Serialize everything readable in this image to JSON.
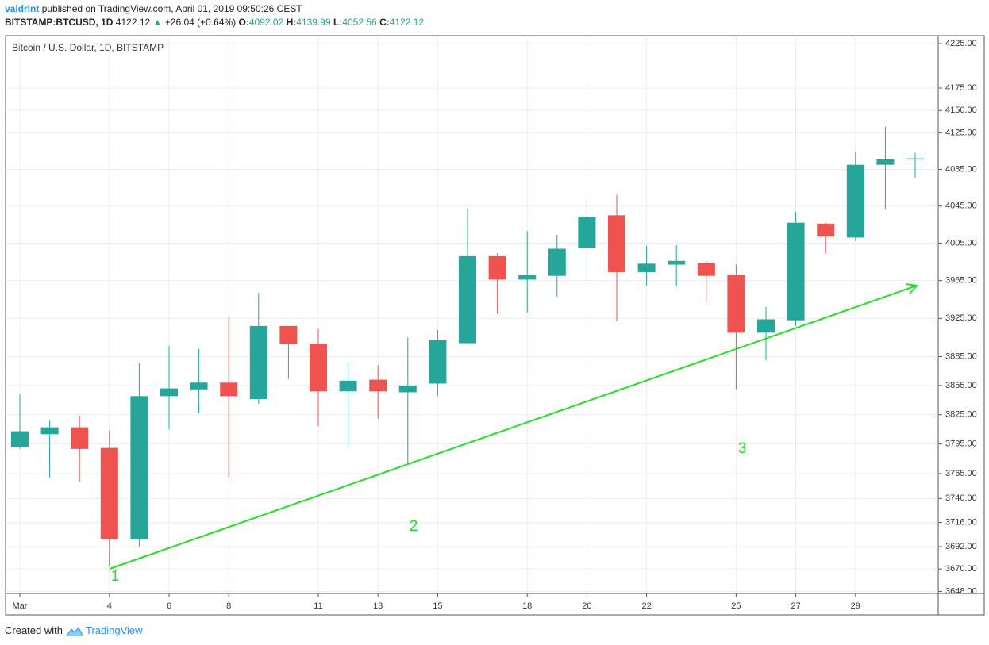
{
  "header": {
    "user": "valdrint",
    "published": "published on TradingView.com, April 01, 2019 09:50:26 CEST",
    "symbol": "BITSTAMP:BTCUSD, 1D",
    "last": "4122.12",
    "arrow": "▲",
    "change": "+26.04 (+0.64%)",
    "o_label": "O:",
    "o": "4092.02",
    "h_label": "H:",
    "h": "4139.99",
    "l_label": "L:",
    "l": "4052.56",
    "c_label": "C:",
    "c": "4122.12"
  },
  "chart_data": {
    "type": "candlestick",
    "title": "Bitcoin / U.S. Dollar, 1D, BITSTAMP",
    "categories": [
      "Mar",
      null,
      null,
      "4",
      null,
      "6",
      null,
      "8",
      null,
      null,
      "11",
      null,
      "13",
      null,
      "15",
      null,
      null,
      "18",
      null,
      "20",
      null,
      "22",
      null,
      null,
      "25",
      null,
      "27",
      null,
      "29",
      null,
      null
    ],
    "open": [
      3792,
      3805,
      3812,
      3791,
      3699,
      3844,
      3851,
      3858,
      3841,
      3917,
      3898,
      3849,
      3861,
      3848,
      3857,
      3899,
      3991,
      3966,
      3970,
      4000,
      4035,
      3974,
      3982,
      3984,
      3971,
      3910,
      3923,
      4026,
      4011,
      4090,
      4096
    ],
    "high": [
      3846,
      3819,
      3824,
      3809,
      3878,
      3896,
      3893,
      3927,
      3952,
      3917,
      3914,
      3878,
      3876,
      3905,
      3913,
      4042,
      3994,
      4018,
      4014,
      4051,
      4057,
      4002,
      4003,
      3986,
      3982,
      3937,
      4039,
      4027,
      4104,
      4132,
      4103
    ],
    "low": [
      3790,
      3761,
      3757,
      3672,
      3692,
      3810,
      3827,
      3761,
      3836,
      3862,
      3813,
      3793,
      3821,
      3776,
      3844,
      3899,
      3930,
      3931,
      3948,
      3963,
      3922,
      3960,
      3959,
      3942,
      3851,
      3881,
      3917,
      3994,
      4007,
      4041,
      4076
    ],
    "close": [
      3808,
      3812,
      3790,
      3699,
      3844,
      3852,
      3858,
      3844,
      3917,
      3898,
      3849,
      3860,
      3849,
      3855,
      3902,
      3991,
      3966,
      3971,
      3999,
      4033,
      3974,
      3983,
      3986,
      3970,
      3910,
      3924,
      4027,
      4012,
      4090,
      4096,
      4097
    ],
    "up_color": "#26a69a",
    "down_color": "#ef5350",
    "log_scale": true,
    "grid": true,
    "ylim": [
      3646,
      4234
    ],
    "yticks": [
      {
        "value": 3648,
        "label": "3648.00"
      },
      {
        "value": 3670,
        "label": "3670.00"
      },
      {
        "value": 3692,
        "label": "3692.00"
      },
      {
        "value": 3716,
        "label": "3716.00"
      },
      {
        "value": 3740,
        "label": "3740.00"
      },
      {
        "value": 3765,
        "label": "3765.00"
      },
      {
        "value": 3795,
        "label": "3795.00"
      },
      {
        "value": 3825,
        "label": "3825.00"
      },
      {
        "value": 3855,
        "label": "3855.00"
      },
      {
        "value": 3885,
        "label": "3885.00"
      },
      {
        "value": 3925,
        "label": "3925.00"
      },
      {
        "value": 3965,
        "label": "3965.00"
      },
      {
        "value": 4005,
        "label": "4005.00"
      },
      {
        "value": 4045,
        "label": "4045.00"
      },
      {
        "value": 4085,
        "label": "4085.00"
      },
      {
        "value": 4125,
        "label": "4125.00"
      },
      {
        "value": 4150,
        "label": "4150.00"
      },
      {
        "value": 4175,
        "label": "4175.00"
      },
      {
        "value": 4225,
        "label": "4225.00"
      }
    ],
    "annotations": [
      "1",
      "2",
      "3"
    ],
    "annotation_color": "#22e022"
  },
  "footer": {
    "created": "Created with",
    "brand": "TradingView"
  }
}
